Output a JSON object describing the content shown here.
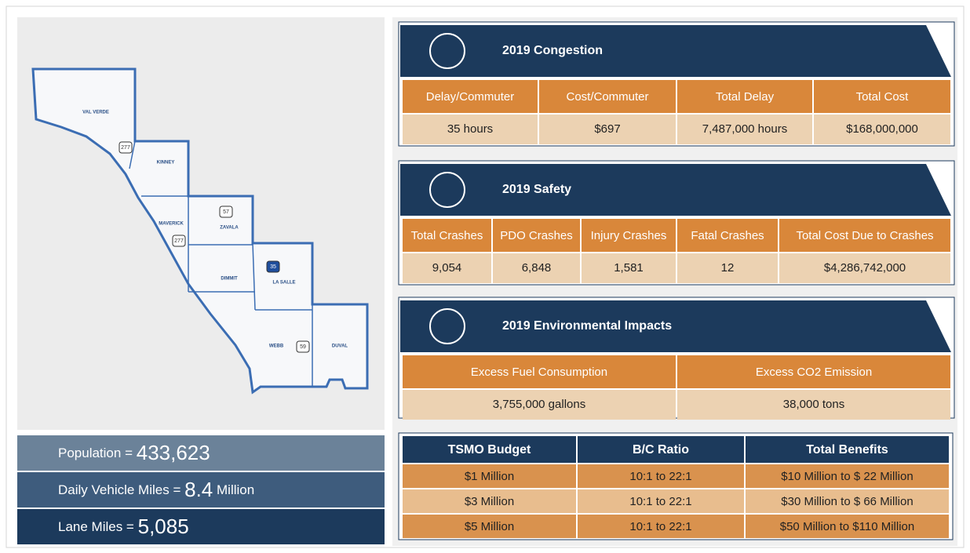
{
  "map": {
    "counties": [
      "VAL VERDE",
      "KINNEY",
      "MAVERICK",
      "ZAVALA",
      "DIMMIT",
      "LA SALLE",
      "WEBB",
      "DUVAL"
    ],
    "shields": [
      "277",
      "277",
      "57",
      "35",
      "59"
    ]
  },
  "stats": [
    {
      "label": "Population =",
      "value": "433,623"
    },
    {
      "label": "Daily Vehicle Miles =",
      "value": "8.4",
      "unit": "Million"
    },
    {
      "label": "Lane Miles =",
      "value": "5,085"
    }
  ],
  "sections": [
    {
      "title": "2019 Congestion",
      "headers": [
        "Delay/Commuter",
        "Cost/Commuter",
        "Total Delay",
        "Total Cost"
      ],
      "values": [
        "35 hours",
        "$697",
        "7,487,000 hours",
        "$168,000,000"
      ]
    },
    {
      "title": "2019 Safety",
      "headers": [
        "Total Crashes",
        "PDO Crashes",
        "Injury Crashes",
        "Fatal Crashes",
        "Total Cost Due to Crashes"
      ],
      "values": [
        "9,054",
        "6,848",
        "1,581",
        "12",
        "$4,286,742,000"
      ]
    },
    {
      "title": "2019 Environmental Impacts",
      "headers": [
        "Excess Fuel Consumption",
        "Excess CO2 Emission"
      ],
      "values": [
        "3,755,000 gallons",
        "38,000 tons"
      ]
    }
  ],
  "tsmo": {
    "headers": [
      "TSMO Budget",
      "B/C Ratio",
      "Total  Benefits"
    ],
    "rows": [
      [
        "$1 Million",
        "10:1 to 22:1",
        "$10 Million to $ 22 Million"
      ],
      [
        "$3 Million",
        "10:1 to 22:1",
        "$30 Million to $ 66 Million"
      ],
      [
        "$5 Million",
        "10:1 to 22:1",
        "$50 Million to $110 Million"
      ]
    ]
  }
}
